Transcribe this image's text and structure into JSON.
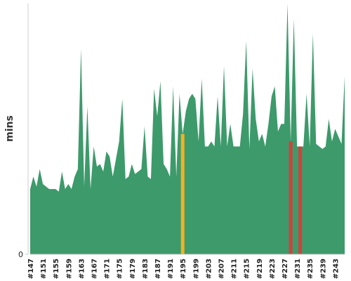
{
  "chart_data": {
    "type": "area",
    "ylabel": "mins",
    "categories": [
      "#147",
      null,
      null,
      null,
      "#151",
      null,
      null,
      null,
      "#155",
      null,
      null,
      null,
      "#159",
      null,
      null,
      null,
      "#163",
      null,
      null,
      null,
      "#167",
      null,
      null,
      null,
      "#171",
      null,
      null,
      null,
      "#175",
      null,
      null,
      null,
      "#179",
      null,
      null,
      null,
      "#183",
      null,
      null,
      null,
      "#187",
      null,
      null,
      null,
      "#191",
      null,
      null,
      null,
      "#195",
      null,
      null,
      null,
      "#199",
      null,
      null,
      null,
      "#203",
      null,
      null,
      null,
      "#207",
      null,
      null,
      null,
      "#211",
      null,
      null,
      null,
      "#215",
      null,
      null,
      null,
      "#219",
      null,
      null,
      null,
      "#223",
      null,
      null,
      null,
      "#227",
      null,
      null,
      null,
      "#231",
      null,
      null,
      null,
      "#235",
      null,
      null,
      null,
      "#239",
      null,
      null,
      null,
      "#243",
      null,
      null,
      null
    ],
    "values": [
      26,
      31,
      27,
      34,
      28,
      27,
      26,
      26,
      26,
      25,
      33,
      26,
      28,
      26,
      31,
      34,
      82,
      27,
      59,
      26,
      43,
      35,
      36,
      33,
      41,
      39,
      31,
      38,
      45,
      62,
      30,
      31,
      36,
      32,
      33,
      34,
      51,
      31,
      30,
      66,
      55,
      69,
      36,
      34,
      31,
      67,
      31,
      64,
      48,
      57,
      62,
      64,
      62,
      45,
      70,
      43,
      43,
      45,
      43,
      63,
      43,
      75,
      43,
      52,
      43,
      43,
      43,
      56,
      85,
      42,
      74,
      54,
      45,
      48,
      43,
      52,
      63,
      67,
      49,
      52,
      52,
      100,
      45,
      94,
      43,
      43,
      43,
      64,
      43,
      88,
      44,
      43,
      42,
      43,
      54,
      45,
      50,
      47,
      44,
      71
    ],
    "color": "#3d9a6b",
    "highlights": [
      {
        "index": 48,
        "color": "#f2b125"
      },
      {
        "index": 82,
        "color": "#d63f3a"
      },
      {
        "index": 85,
        "color": "#d63f3a"
      }
    ],
    "ylim": [
      0,
      100
    ],
    "yticks": [
      0
    ]
  }
}
